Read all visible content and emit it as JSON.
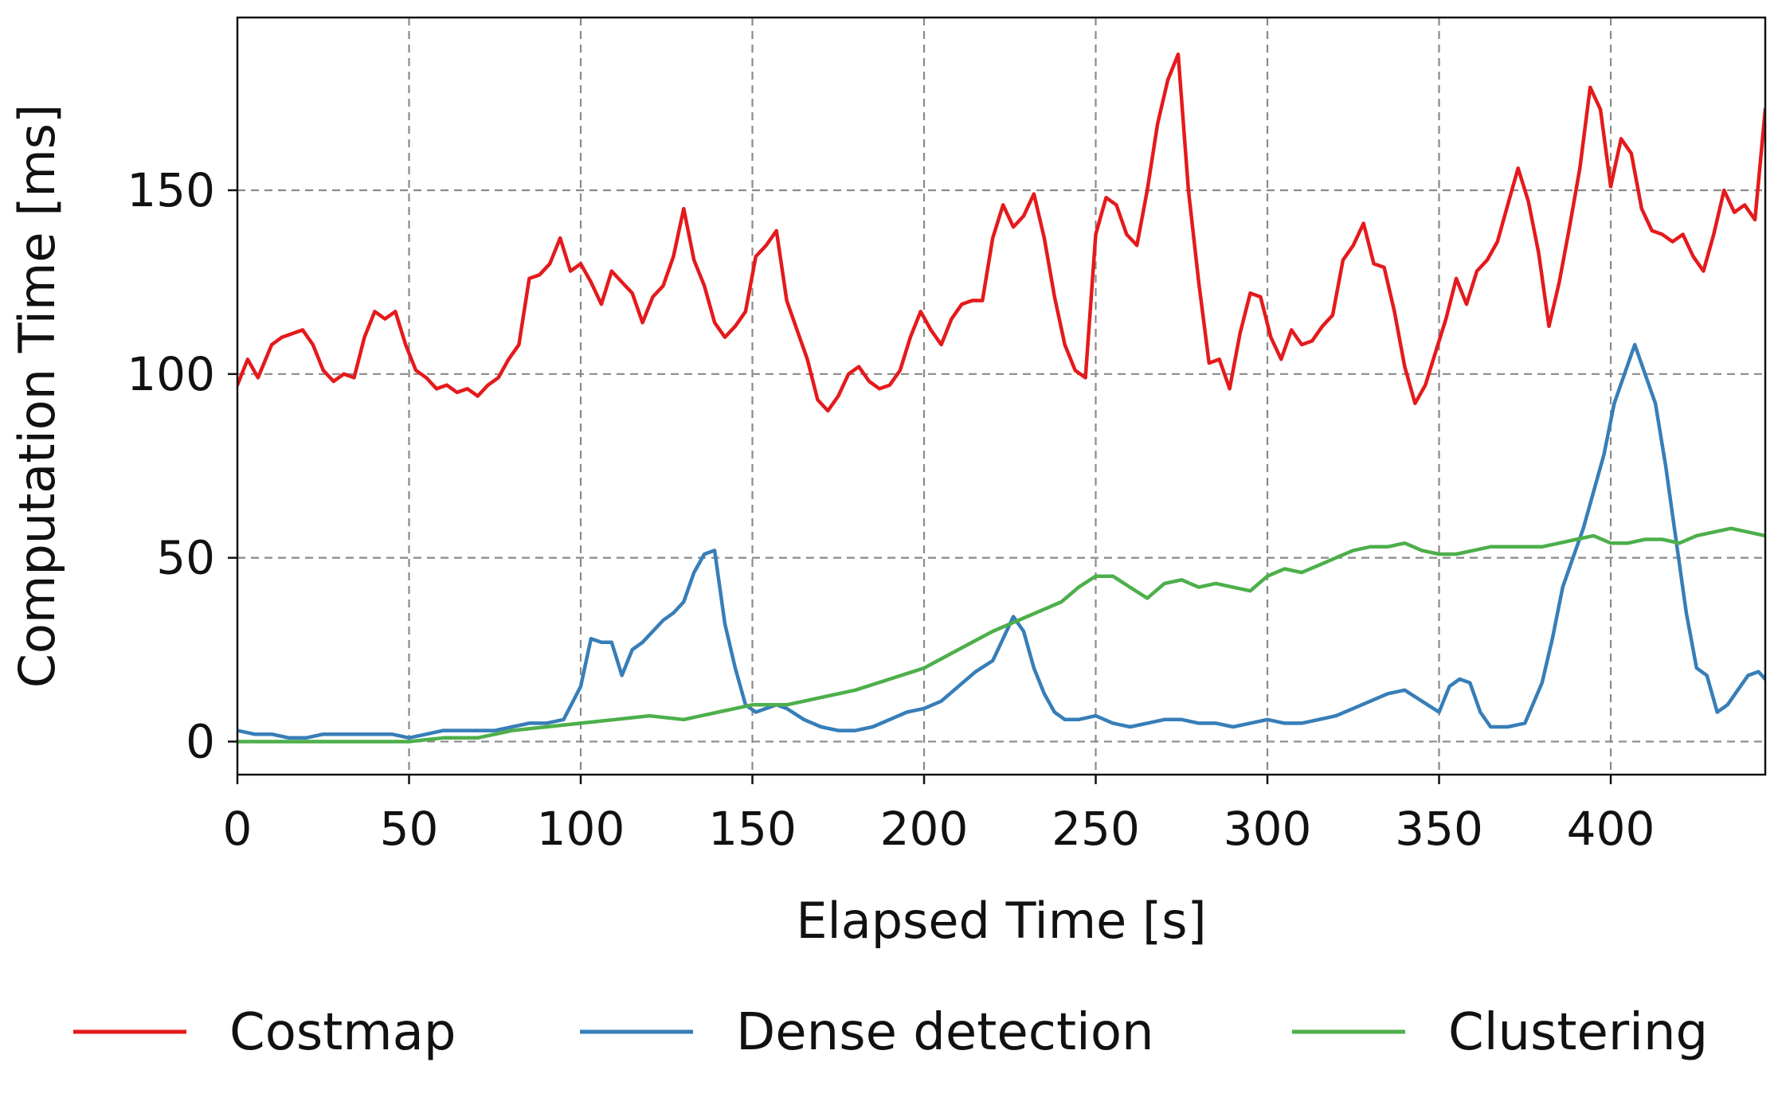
{
  "chart_data": {
    "type": "line",
    "xlabel": "Elapsed Time [s]",
    "ylabel": "Computation Time [ms]",
    "xlim": [
      0,
      445
    ],
    "ylim": [
      -9,
      197
    ],
    "x_ticks": [
      0,
      50,
      100,
      150,
      200,
      250,
      300,
      350,
      400
    ],
    "y_ticks": [
      0,
      50,
      100,
      150
    ],
    "grid": true,
    "legend_position": "bottom",
    "series": [
      {
        "name": "Costmap",
        "color": "#e41a1c",
        "x": [
          0,
          3,
          6,
          10,
          13,
          16,
          19,
          22,
          25,
          28,
          31,
          34,
          37,
          40,
          43,
          46,
          49,
          52,
          55,
          58,
          61,
          64,
          67,
          70,
          73,
          76,
          79,
          82,
          85,
          88,
          91,
          94,
          97,
          100,
          103,
          106,
          109,
          112,
          115,
          118,
          121,
          124,
          127,
          130,
          133,
          136,
          139,
          142,
          145,
          148,
          151,
          154,
          157,
          160,
          163,
          166,
          169,
          172,
          175,
          178,
          181,
          184,
          187,
          190,
          193,
          196,
          199,
          202,
          205,
          208,
          211,
          214,
          217,
          220,
          223,
          226,
          229,
          232,
          235,
          238,
          241,
          244,
          247,
          250,
          253,
          256,
          259,
          262,
          265,
          268,
          271,
          274,
          277,
          280,
          283,
          286,
          289,
          292,
          295,
          298,
          301,
          304,
          307,
          310,
          313,
          316,
          319,
          322,
          325,
          328,
          331,
          334,
          337,
          340,
          343,
          346,
          349,
          352,
          355,
          358,
          361,
          364,
          367,
          370,
          373,
          376,
          379,
          382,
          385,
          388,
          391,
          394,
          397,
          400,
          403,
          406,
          409,
          412,
          415,
          418,
          421,
          424,
          427,
          430,
          433,
          436,
          439,
          442,
          445
        ],
        "values": [
          97,
          104,
          99,
          108,
          110,
          111,
          112,
          108,
          101,
          98,
          100,
          99,
          110,
          117,
          115,
          117,
          108,
          101,
          99,
          96,
          97,
          95,
          96,
          94,
          97,
          99,
          104,
          108,
          126,
          127,
          130,
          137,
          128,
          130,
          125,
          119,
          128,
          125,
          122,
          114,
          121,
          124,
          132,
          145,
          131,
          124,
          114,
          110,
          113,
          117,
          132,
          135,
          139,
          120,
          112,
          104,
          93,
          90,
          94,
          100,
          102,
          98,
          96,
          97,
          101,
          110,
          117,
          112,
          108,
          115,
          119,
          120,
          120,
          137,
          146,
          140,
          143,
          149,
          137,
          121,
          108,
          101,
          99,
          138,
          148,
          146,
          138,
          135,
          150,
          168,
          180,
          187,
          150,
          125,
          103,
          104,
          96,
          111,
          122,
          121,
          110,
          104,
          112,
          108,
          109,
          113,
          116,
          131,
          135,
          141,
          130,
          129,
          117,
          102,
          92,
          97,
          106,
          115,
          126,
          119,
          128,
          131,
          136,
          146,
          156,
          147,
          133,
          113,
          125,
          140,
          156,
          178,
          172,
          151,
          164,
          160,
          145,
          139,
          138,
          136,
          138,
          132,
          128,
          138,
          150,
          144,
          146,
          142,
          172
        ]
      },
      {
        "name": "Dense detection",
        "color": "#377eb8",
        "x": [
          0,
          5,
          10,
          15,
          20,
          25,
          30,
          35,
          40,
          45,
          50,
          55,
          60,
          65,
          70,
          75,
          80,
          85,
          90,
          95,
          100,
          103,
          106,
          109,
          112,
          115,
          118,
          121,
          124,
          127,
          130,
          133,
          136,
          139,
          142,
          145,
          148,
          151,
          154,
          157,
          160,
          165,
          170,
          175,
          180,
          185,
          190,
          195,
          200,
          205,
          210,
          215,
          220,
          223,
          226,
          229,
          232,
          235,
          238,
          241,
          245,
          250,
          255,
          260,
          265,
          270,
          275,
          280,
          285,
          290,
          295,
          300,
          305,
          310,
          315,
          320,
          325,
          330,
          335,
          340,
          345,
          350,
          353,
          356,
          359,
          362,
          365,
          370,
          375,
          380,
          383,
          386,
          389,
          392,
          395,
          398,
          401,
          404,
          407,
          410,
          413,
          416,
          419,
          422,
          425,
          428,
          431,
          434,
          437,
          440,
          443,
          445
        ],
        "values": [
          3,
          2,
          2,
          1,
          1,
          2,
          2,
          2,
          2,
          2,
          1,
          2,
          3,
          3,
          3,
          3,
          4,
          5,
          5,
          6,
          15,
          28,
          27,
          27,
          18,
          25,
          27,
          30,
          33,
          35,
          38,
          46,
          51,
          52,
          32,
          20,
          10,
          8,
          9,
          10,
          9,
          6,
          4,
          3,
          3,
          4,
          6,
          8,
          9,
          11,
          15,
          19,
          22,
          28,
          34,
          30,
          20,
          13,
          8,
          6,
          6,
          7,
          5,
          4,
          5,
          6,
          6,
          5,
          5,
          4,
          5,
          6,
          5,
          5,
          6,
          7,
          9,
          11,
          13,
          14,
          11,
          8,
          15,
          17,
          16,
          8,
          4,
          4,
          5,
          16,
          28,
          42,
          50,
          58,
          68,
          78,
          92,
          100,
          108,
          100,
          92,
          75,
          55,
          35,
          20,
          18,
          8,
          10,
          14,
          18,
          19,
          17
        ]
      },
      {
        "name": "Clustering",
        "color": "#4daf4a",
        "x": [
          0,
          10,
          20,
          30,
          40,
          50,
          60,
          70,
          80,
          90,
          100,
          110,
          120,
          130,
          140,
          150,
          160,
          170,
          180,
          190,
          200,
          210,
          220,
          230,
          240,
          245,
          250,
          255,
          260,
          265,
          270,
          275,
          280,
          285,
          290,
          295,
          300,
          305,
          310,
          315,
          320,
          325,
          330,
          335,
          340,
          345,
          350,
          355,
          360,
          365,
          370,
          375,
          380,
          385,
          390,
          395,
          400,
          405,
          410,
          415,
          420,
          425,
          430,
          435,
          440,
          445
        ],
        "values": [
          0,
          0,
          0,
          0,
          0,
          0,
          1,
          1,
          3,
          4,
          5,
          6,
          7,
          6,
          8,
          10,
          10,
          12,
          14,
          17,
          20,
          25,
          30,
          34,
          38,
          42,
          45,
          45,
          42,
          39,
          43,
          44,
          42,
          43,
          42,
          41,
          45,
          47,
          46,
          48,
          50,
          52,
          53,
          53,
          54,
          52,
          51,
          51,
          52,
          53,
          53,
          53,
          53,
          54,
          55,
          56,
          54,
          54,
          55,
          55,
          54,
          56,
          57,
          58,
          57,
          56
        ]
      }
    ]
  }
}
